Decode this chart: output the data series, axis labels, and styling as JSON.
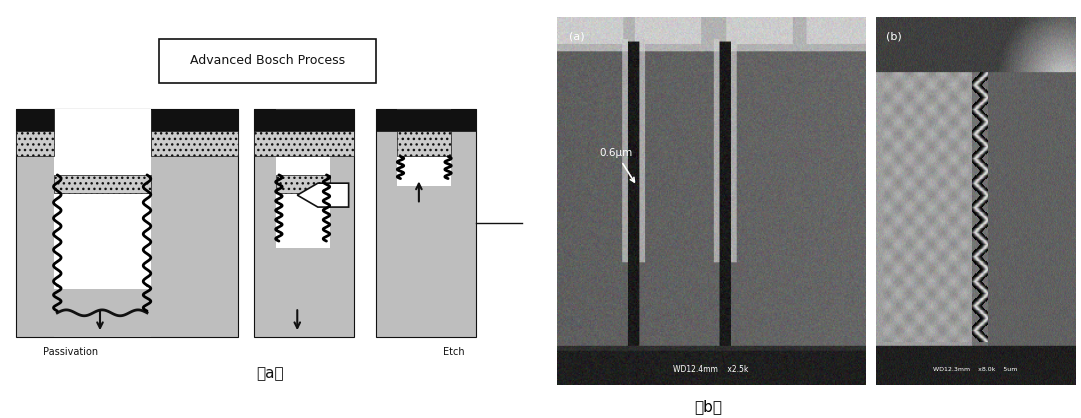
{
  "fig_width": 10.81,
  "fig_height": 4.18,
  "bg_color": "#ffffff",
  "label_a": "（a）",
  "label_b": "（b）",
  "bosch_title": "Advanced Bosch Process",
  "sem_label_a": "(a)",
  "sem_label_b": "(b)",
  "annotation_text": "0.6μm",
  "sem_info_a": "WD12.4mm    x2.5k",
  "sem_info_b": "WD12.3mm    x8.0k    5um"
}
